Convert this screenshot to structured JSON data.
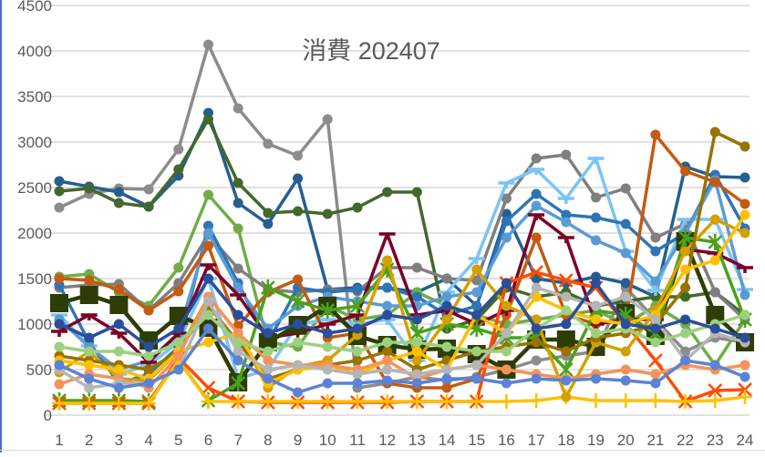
{
  "chart_data": {
    "type": "line",
    "title": "消費 202407",
    "xlabel": "",
    "ylabel": "",
    "ylim": [
      0,
      4500
    ],
    "yticks": [
      0,
      500,
      1000,
      1500,
      2000,
      2500,
      3000,
      3500,
      4000,
      4500
    ],
    "grid": true,
    "legend": "none",
    "categories": [
      "1",
      "2",
      "3",
      "4",
      "5",
      "6",
      "7",
      "8",
      "9",
      "10",
      "11",
      "12",
      "13",
      "14",
      "15",
      "16",
      "17",
      "18",
      "19",
      "20",
      "21",
      "22",
      "23",
      "24"
    ],
    "series": [
      {
        "name": "gray-top",
        "color": "#8c8c8c",
        "marker": "circle",
        "values": [
          2280,
          2430,
          2490,
          2480,
          2920,
          4070,
          3370,
          2980,
          2850,
          3250,
          300,
          350,
          420,
          380,
          420,
          500,
          600,
          650,
          700,
          1400,
          1050,
          700,
          850,
          800
        ]
      },
      {
        "name": "dark-blue",
        "color": "#255e91",
        "marker": "circle",
        "values": [
          2570,
          2510,
          2450,
          2290,
          2630,
          3320,
          2330,
          2100,
          2600,
          1380,
          1400,
          1400,
          1350,
          1500,
          1200,
          2210,
          1500,
          1450,
          1520,
          1450,
          1300,
          2730,
          2620,
          2610
        ]
      },
      {
        "name": "dark-green",
        "color": "#43682b",
        "marker": "circle",
        "values": [
          2460,
          2490,
          2330,
          2290,
          2700,
          3250,
          2550,
          2220,
          2240,
          2210,
          2280,
          2450,
          2450,
          950,
          1050,
          1400,
          1300,
          1350,
          1200,
          1250,
          1300,
          1300,
          1350,
          1100
        ]
      },
      {
        "name": "green-light",
        "color": "#70ad47",
        "marker": "circle",
        "values": [
          1520,
          1550,
          1350,
          1200,
          1620,
          2420,
          2050,
          800,
          750,
          1200,
          1050,
          1100,
          1350,
          1200,
          1100,
          1000,
          1050,
          1100,
          1150,
          1000,
          1200,
          1000,
          550,
          1050
        ]
      },
      {
        "name": "gray-mid",
        "color": "#7f7f7f",
        "marker": "circle",
        "values": [
          1400,
          1430,
          1440,
          1150,
          1450,
          1980,
          1610,
          1380,
          1350,
          1380,
          1360,
          1620,
          1620,
          1500,
          1480,
          2380,
          2820,
          2860,
          2390,
          2490,
          1950,
          2100,
          1350,
          1050
        ]
      },
      {
        "name": "light-sky",
        "color": "#7cc4f5",
        "marker": "tee",
        "values": [
          1100,
          760,
          450,
          550,
          800,
          1500,
          400,
          500,
          1000,
          1050,
          1000,
          1050,
          600,
          1350,
          1720,
          2550,
          2700,
          2380,
          2820,
          1800,
          1370,
          2150,
          2150,
          1380
        ]
      },
      {
        "name": "mid-blue",
        "color": "#2e75b6",
        "marker": "circle",
        "values": [
          1430,
          800,
          350,
          450,
          750,
          2080,
          1450,
          800,
          1400,
          1350,
          1380,
          1400,
          1300,
          1100,
          1200,
          2130,
          2430,
          2200,
          2170,
          2100,
          1800,
          2000,
          2640,
          2050
        ]
      },
      {
        "name": "steel-blue",
        "color": "#5b9bd5",
        "marker": "circle",
        "values": [
          1050,
          750,
          500,
          600,
          900,
          2000,
          1400,
          950,
          1200,
          1300,
          1250,
          1200,
          1200,
          1300,
          1350,
          1950,
          2300,
          2120,
          1920,
          1780,
          1470,
          2000,
          2580,
          1320
        ]
      },
      {
        "name": "orange-dark",
        "color": "#c55a11",
        "marker": "circle",
        "values": [
          1500,
          1480,
          1380,
          1150,
          1360,
          1860,
          980,
          1350,
          1490,
          850,
          900,
          350,
          300,
          300,
          400,
          1100,
          1950,
          1100,
          1000,
          1050,
          3080,
          2680,
          2560,
          2320
        ]
      },
      {
        "name": "burgundy",
        "color": "#7b0026",
        "marker": "tee",
        "values": [
          920,
          1100,
          900,
          580,
          900,
          1650,
          1320,
          850,
          900,
          1000,
          1100,
          1990,
          1100,
          1150,
          1000,
          1150,
          2200,
          1950,
          1000,
          1050,
          1050,
          1820,
          1780,
          1620
        ]
      },
      {
        "name": "olive-square",
        "color": "#2e3d05",
        "marker": "square",
        "values": [
          1230,
          1320,
          1210,
          820,
          1090,
          960,
          360,
          800,
          990,
          1200,
          870,
          770,
          720,
          730,
          670,
          500,
          830,
          830,
          750,
          1120,
          870,
          1910,
          1100,
          800
        ]
      },
      {
        "name": "lime-star",
        "color": "#4aa11c",
        "marker": "star",
        "values": [
          160,
          160,
          160,
          150,
          600,
          160,
          350,
          1400,
          1250,
          1150,
          1200,
          1600,
          900,
          1000,
          950,
          850,
          850,
          500,
          1150,
          1100,
          900,
          1950,
          1900,
          1050
        ]
      },
      {
        "name": "red-x",
        "color": "#ff4b00",
        "marker": "x",
        "values": [
          130,
          130,
          130,
          130,
          630,
          300,
          150,
          140,
          140,
          140,
          140,
          140,
          150,
          150,
          150,
          1450,
          1570,
          1480,
          1400,
          1000,
          600,
          150,
          270,
          280
        ]
      },
      {
        "name": "yellow-plus",
        "color": "#ffc000",
        "marker": "plus",
        "values": [
          130,
          130,
          130,
          130,
          600,
          150,
          150,
          150,
          150,
          150,
          150,
          150,
          150,
          150,
          150,
          150,
          160,
          200,
          160,
          160,
          160,
          150,
          160,
          200
        ]
      },
      {
        "name": "gold",
        "color": "#d4a000",
        "marker": "circle",
        "values": [
          470,
          700,
          400,
          380,
          700,
          1300,
          900,
          300,
          530,
          600,
          880,
          1700,
          600,
          1050,
          1600,
          1200,
          1050,
          200,
          800,
          700,
          1150,
          1800,
          2150,
          2000
        ]
      },
      {
        "name": "olive-brown",
        "color": "#997300",
        "marker": "circle",
        "values": [
          650,
          600,
          550,
          500,
          700,
          1200,
          800,
          400,
          500,
          550,
          600,
          700,
          500,
          600,
          700,
          750,
          800,
          700,
          850,
          900,
          1000,
          1400,
          3110,
          2950
        ]
      },
      {
        "name": "yellow-dot",
        "color": "#ffc000",
        "marker": "circle",
        "values": [
          600,
          550,
          500,
          400,
          700,
          800,
          900,
          350,
          500,
          550,
          450,
          600,
          700,
          500,
          1100,
          900,
          1300,
          1150,
          1050,
          1000,
          1100,
          1600,
          1700,
          2200
        ]
      },
      {
        "name": "salmon",
        "color": "#f4935a",
        "marker": "circle",
        "values": [
          340,
          450,
          400,
          300,
          650,
          1300,
          900,
          600,
          550,
          550,
          500,
          600,
          400,
          500,
          550,
          500,
          450,
          400,
          450,
          500,
          450,
          550,
          500,
          550
        ]
      },
      {
        "name": "silver",
        "color": "#b5b5b5",
        "marker": "circle",
        "values": [
          500,
          300,
          350,
          350,
          500,
          1250,
          700,
          500,
          550,
          500,
          450,
          500,
          450,
          500,
          550,
          900,
          1400,
          1300,
          1200,
          1300,
          1050,
          600,
          900,
          800
        ]
      },
      {
        "name": "pale-green",
        "color": "#9bd17e",
        "marker": "circle",
        "values": [
          750,
          700,
          700,
          650,
          800,
          1100,
          800,
          700,
          800,
          750,
          700,
          800,
          800,
          750,
          700,
          700,
          950,
          1150,
          900,
          950,
          800,
          900,
          1000,
          1100
        ]
      },
      {
        "name": "cornflower",
        "color": "#5b82d6",
        "marker": "circle",
        "values": [
          550,
          400,
          300,
          350,
          500,
          950,
          600,
          400,
          250,
          350,
          350,
          380,
          350,
          400,
          400,
          350,
          400,
          380,
          400,
          380,
          350,
          600,
          550,
          420
        ]
      },
      {
        "name": "navy",
        "color": "#2a4e9a",
        "marker": "circle",
        "values": [
          1000,
          850,
          1000,
          750,
          950,
          1500,
          1100,
          900,
          1000,
          900,
          950,
          1100,
          1050,
          1200,
          1100,
          1450,
          950,
          1000,
          1450,
          1000,
          950,
          1050,
          950,
          850
        ]
      }
    ]
  },
  "labels": {
    "title": "消費 202407"
  }
}
